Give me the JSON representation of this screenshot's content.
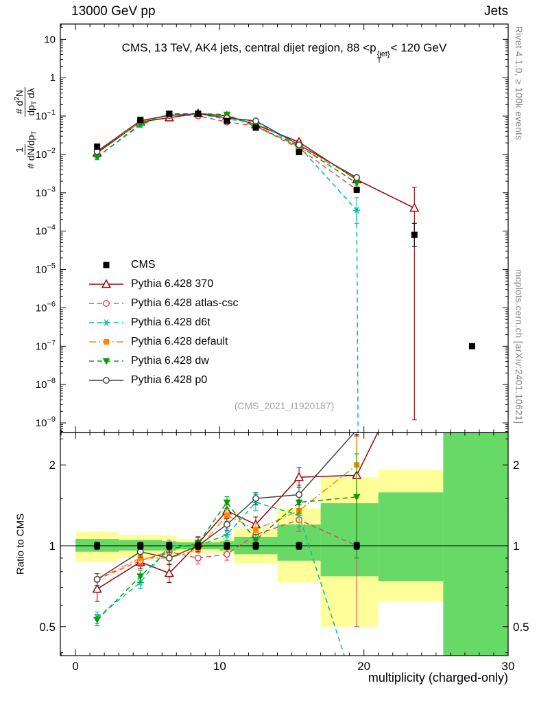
{
  "header": {
    "left": "13000 GeV pp",
    "right": "Jets"
  },
  "titles": {
    "main_pre": "CMS, 13 TeV, AK4 jets, central dijet region, 88 <p",
    "main_sup": "{jet}",
    "main_sub": "T",
    "main_post": "< 120 GeV",
    "watermark": "(CMS_2021_I1920187)",
    "x_axis": "multiplicity (charged-only)",
    "ratio_y_axis": "Ratio to CMS",
    "right_top": "Rivet 4.1.0, ≥ 100k events",
    "right_bottom": "mcplots.cern.ch [arXiv:2401.10621]"
  },
  "ylabel_main": {
    "f1_num": [
      {
        "t": "1"
      }
    ],
    "f1_den": [
      {
        "t": "# dN/dp"
      },
      {
        "t": "T",
        "s": "sub"
      }
    ],
    "f2_num": [
      {
        "t": "# d"
      },
      {
        "t": "2",
        "s": "sup"
      },
      {
        "t": "N"
      }
    ],
    "f2_den": [
      {
        "t": "dp"
      },
      {
        "t": "T",
        "s": "sub"
      },
      {
        "t": " dλ"
      }
    ]
  },
  "legend": {
    "items": [
      {
        "label": "CMS",
        "color": "#000000",
        "marker": "sq",
        "line": "none"
      },
      {
        "label": "Pythia 6.428 370",
        "color": "#9a0000",
        "marker": "tri",
        "line": "solid"
      },
      {
        "label": "Pythia 6.428 atlas-csc",
        "color": "#ee4455",
        "marker": "circ",
        "line": "dash"
      },
      {
        "label": "Pythia 6.428 d6t",
        "color": "#00bbaa",
        "marker": "star",
        "line": "dash"
      },
      {
        "label": "Pythia 6.428 default",
        "color": "#ff8800",
        "marker": "sqf",
        "line": "dashdot"
      },
      {
        "label": "Pythia 6.428 dw",
        "color": "#00a000",
        "marker": "trid",
        "line": "dash"
      },
      {
        "label": "Pythia 6.428 p0",
        "color": "#444444",
        "marker": "circ",
        "line": "solid"
      }
    ]
  },
  "chart_data": [
    {
      "type": "line",
      "id": "main",
      "title": "CMS, 13 TeV, AK4 jets, central dijet region, 88 < pT{jet} < 120 GeV",
      "xlabel": "multiplicity (charged-only)",
      "ylabel": "1/(# dN/dpT) d²N/(dpT dλ)",
      "x_range": [
        -1.05,
        30
      ],
      "y_scale": "log",
      "y_range_exp": [
        -9.25,
        1.4
      ],
      "y_ticks_exp": [
        1,
        0,
        -1,
        -2,
        -3,
        -4,
        -5,
        -6,
        -7,
        -8,
        -9
      ],
      "x_ticks": [
        0,
        10,
        20,
        30
      ],
      "x": [
        1.5,
        4.5,
        6.5,
        8.5,
        10.5,
        12.5,
        15.5,
        19.5,
        23.5,
        27.5
      ],
      "series": [
        {
          "name": "CMS",
          "color": "#000000",
          "marker": "sq",
          "line": "none",
          "ef": 0.1,
          "y": [
            0.016,
            0.08,
            0.115,
            0.115,
            0.075,
            0.05,
            0.0115,
            0.0012,
            8e-05,
            1e-07
          ],
          "yerr": {
            "8": [
              4e-05,
              0.00016
            ]
          }
        },
        {
          "name": "Pythia 6.428 370",
          "color": "#9a0000",
          "marker": "tri",
          "line": "solid",
          "ef": 0.12,
          "y": [
            0.011,
            0.07,
            0.091,
            0.117,
            0.101,
            0.06,
            0.021,
            0.0022,
            0.0004,
            null
          ],
          "yerr": {
            "8": [
              1.2e-09,
              0.0014
            ]
          }
        },
        {
          "name": "Pythia 6.428 atlas-csc",
          "color": "#ee4455",
          "marker": "circ",
          "line": "dash",
          "ef": 0.12,
          "y": [
            0.012,
            0.07,
            0.109,
            0.101,
            0.07,
            0.055,
            0.0144,
            0.0012,
            null,
            null
          ]
        },
        {
          "name": "Pythia 6.428 d6t",
          "color": "#00bbaa",
          "marker": "star",
          "line": "dash",
          "ef": 0.12,
          "y": [
            0.0086,
            0.058,
            0.115,
            0.115,
            0.082,
            0.072,
            0.016,
            0.00035,
            null,
            null
          ],
          "yerr": {
            "7": [
              0.00016,
              0.00075
            ]
          },
          "tail": [
            [
              19.6,
              2e-10
            ]
          ]
        },
        {
          "name": "Pythia 6.428 default",
          "color": "#ff8800",
          "marker": "sqf",
          "line": "dashdot",
          "ef": 0.12,
          "y": [
            0.012,
            0.072,
            0.104,
            0.112,
            0.098,
            0.058,
            0.0155,
            0.0024,
            null,
            null
          ]
        },
        {
          "name": "Pythia 6.428 dw",
          "color": "#00a000",
          "marker": "trid",
          "line": "dash",
          "ef": 0.12,
          "y": [
            0.0085,
            0.062,
            0.112,
            0.117,
            0.109,
            0.053,
            0.0167,
            0.0018,
            null,
            null
          ]
        },
        {
          "name": "Pythia 6.428 p0",
          "color": "#444444",
          "marker": "circ",
          "line": "solid",
          "ef": 0.1,
          "y": [
            0.012,
            0.076,
            0.104,
            0.115,
            0.09,
            0.075,
            0.0178,
            0.0025,
            null,
            null
          ]
        }
      ]
    },
    {
      "type": "ratio",
      "id": "ratio",
      "ylabel": "Ratio to CMS",
      "y_scale": "log",
      "y_range": [
        0.39,
        2.64
      ],
      "y_ticks": [
        0.5,
        1,
        2
      ],
      "y_minor": [
        0.4,
        0.6,
        0.7,
        0.8,
        0.9,
        1.5,
        2.5
      ],
      "x_ticks": [
        0,
        10,
        20,
        30
      ],
      "unity": 1,
      "band_colors": {
        "yellow": "#ffff99",
        "green": "#66d966"
      },
      "bands": {
        "yellow": [
          [
            0,
            3,
            0.87,
            1.13
          ],
          [
            3,
            6,
            0.9,
            1.1
          ],
          [
            6,
            7,
            0.92,
            1.09
          ],
          [
            7,
            10,
            0.94,
            1.06
          ],
          [
            10,
            11,
            0.93,
            1.08
          ],
          [
            11,
            14,
            0.86,
            1.16
          ],
          [
            14,
            17,
            0.73,
            1.38
          ],
          [
            17,
            21,
            0.5,
            1.8
          ],
          [
            21,
            25.5,
            0.62,
            1.92
          ],
          [
            25.5,
            30,
            0.39,
            2.64
          ]
        ],
        "green": [
          [
            0,
            3,
            0.95,
            1.06
          ],
          [
            3,
            6,
            0.96,
            1.05
          ],
          [
            6,
            7,
            0.96,
            1.04
          ],
          [
            7,
            10,
            0.97,
            1.03
          ],
          [
            10,
            11,
            0.96,
            1.04
          ],
          [
            11,
            14,
            0.93,
            1.08
          ],
          [
            14,
            17,
            0.88,
            1.2
          ],
          [
            17,
            21,
            0.77,
            1.44
          ],
          [
            21,
            25.5,
            0.74,
            1.58
          ],
          [
            25.5,
            30,
            0.39,
            2.64
          ]
        ]
      },
      "series": [
        {
          "name": "CMS",
          "color": "#000000",
          "marker": "sq",
          "line": "none",
          "ef": 0.03,
          "r": [
            1,
            1,
            1,
            1,
            1,
            1,
            1,
            1,
            null,
            null
          ]
        },
        {
          "name": "Pythia 6.428 370",
          "color": "#9a0000",
          "marker": "tri",
          "line": "solid",
          "r": [
            0.69,
            0.87,
            0.79,
            1.02,
            1.35,
            1.2,
            1.8,
            1.83,
            5.0,
            null
          ],
          "rerr": {
            "0": [
              0.62,
              0.76
            ],
            "1": [
              0.82,
              0.92
            ],
            "2": [
              0.73,
              0.85
            ],
            "3": [
              0.96,
              1.08
            ],
            "4": [
              1.27,
              1.43
            ],
            "5": [
              1.12,
              1.28
            ],
            "6": [
              1.65,
              1.95
            ],
            "7": [
              1.0,
              2.6
            ]
          }
        },
        {
          "name": "Pythia 6.428 atlas-csc",
          "color": "#ee4455",
          "marker": "circ",
          "line": "dash",
          "r": [
            0.75,
            0.88,
            0.95,
            0.9,
            0.93,
            1.1,
            1.25,
            1.0,
            null,
            null
          ],
          "rerr": {
            "6": [
              1.13,
              1.37
            ],
            "7": [
              0.5,
              1.52
            ]
          }
        },
        {
          "name": "Pythia 6.428 d6t",
          "color": "#00bbaa",
          "marker": "star",
          "line": "dash",
          "r": [
            0.54,
            0.73,
            1.0,
            1.0,
            1.1,
            1.45,
            1.3,
            0.28,
            null,
            null
          ],
          "rerr": {
            "5": [
              1.35,
              1.55
            ],
            "6": [
              1.18,
              1.42
            ]
          }
        },
        {
          "name": "Pythia 6.428 default",
          "color": "#ff8800",
          "marker": "sqf",
          "line": "dashdot",
          "r": [
            0.75,
            0.9,
            0.9,
            0.97,
            1.3,
            1.15,
            1.35,
            2.0,
            null,
            null
          ],
          "rerr": {
            "6": [
              1.22,
              1.48
            ],
            "7": [
              1.5,
              2.56
            ]
          }
        },
        {
          "name": "Pythia 6.428 dw",
          "color": "#00a000",
          "marker": "trid",
          "line": "dash",
          "r": [
            0.53,
            0.77,
            0.97,
            1.02,
            1.45,
            1.05,
            1.45,
            1.52,
            null,
            null
          ],
          "rerr": {
            "6": [
              1.32,
              1.58
            ],
            "7": [
              0.9,
              2.2
            ]
          }
        },
        {
          "name": "Pythia 6.428 p0",
          "color": "#444444",
          "marker": "circ",
          "line": "solid",
          "r": [
            0.75,
            0.95,
            0.9,
            1.0,
            1.2,
            1.5,
            1.55,
            2.7,
            null,
            null
          ],
          "rerr": {
            "6": [
              1.42,
              1.68
            ]
          }
        }
      ]
    }
  ]
}
